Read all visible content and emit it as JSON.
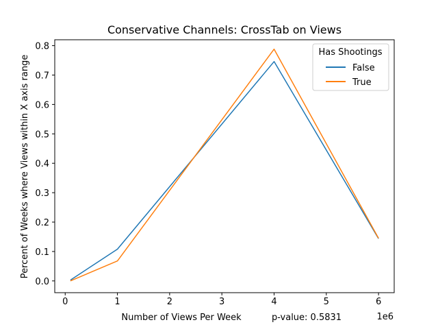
{
  "chart_data": {
    "type": "line",
    "title": "Conservative Channels: CrossTab on Views",
    "xlabel": "Number of Views Per Week",
    "ylabel": "Percent of Weeks where Views within X axis range",
    "annotation": "p-value: 0.5831",
    "x_offset_label": "1e6",
    "xlim": [
      -0.2,
      6.3
    ],
    "ylim": [
      -0.04,
      0.82
    ],
    "x_ticks": [
      0,
      1,
      2,
      3,
      4,
      5,
      6
    ],
    "x_tick_labels": [
      "0",
      "1",
      "2",
      "3",
      "4",
      "5",
      "6"
    ],
    "y_ticks": [
      0.0,
      0.1,
      0.2,
      0.3,
      0.4,
      0.5,
      0.6,
      0.7,
      0.8
    ],
    "y_tick_labels": [
      "0.0",
      "0.1",
      "0.2",
      "0.3",
      "0.4",
      "0.5",
      "0.6",
      "0.7",
      "0.8"
    ],
    "x": [
      0.1,
      1,
      4,
      6
    ],
    "legend_title": "Has Shootings",
    "legend_position": "top-right",
    "grid": false,
    "series": [
      {
        "name": "False",
        "color": "#1f77b4",
        "values": [
          0.003,
          0.108,
          0.746,
          0.144
        ]
      },
      {
        "name": "True",
        "color": "#ff7f0e",
        "values": [
          0.0,
          0.068,
          0.788,
          0.145
        ]
      }
    ]
  }
}
